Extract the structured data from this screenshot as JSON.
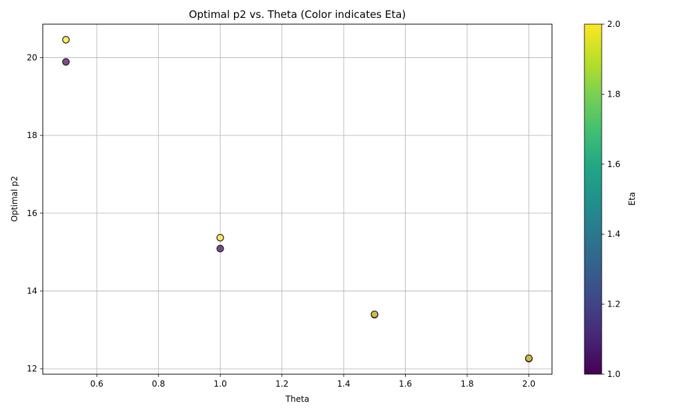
{
  "chart_data": {
    "type": "scatter",
    "title": "Optimal p2 vs. Theta (Color indicates Eta)",
    "xlabel": "Theta",
    "ylabel": "Optimal p2",
    "xlim": [
      0.425,
      2.075
    ],
    "ylim": [
      11.86,
      20.86
    ],
    "xticks": [
      0.6,
      0.8,
      1.0,
      1.2,
      1.4,
      1.6,
      1.8,
      2.0
    ],
    "xtick_labels": [
      "0.6",
      "0.8",
      "1.0",
      "1.2",
      "1.4",
      "1.6",
      "1.8",
      "2.0"
    ],
    "yticks": [
      12,
      14,
      16,
      18,
      20
    ],
    "ytick_labels": [
      "12",
      "14",
      "16",
      "18",
      "20"
    ],
    "grid": true,
    "colorbar": {
      "label": "Eta",
      "colormap": "viridis",
      "range": [
        1.0,
        2.0
      ],
      "ticks": [
        1.0,
        1.2,
        1.4,
        1.6,
        1.8,
        2.0
      ],
      "tick_labels": [
        "1.0",
        "1.2",
        "1.4",
        "1.6",
        "1.8",
        "2.0"
      ]
    },
    "points": [
      {
        "x": 0.5,
        "y": 19.89,
        "eta": 1.0
      },
      {
        "x": 0.5,
        "y": 20.46,
        "eta": 2.0
      },
      {
        "x": 1.0,
        "y": 15.09,
        "eta": 1.0
      },
      {
        "x": 1.0,
        "y": 15.37,
        "eta": 2.0
      },
      {
        "x": 1.5,
        "y": 13.39,
        "eta": 1.0
      },
      {
        "x": 1.5,
        "y": 13.4,
        "eta": 2.0
      },
      {
        "x": 2.0,
        "y": 12.26,
        "eta": 1.0
      },
      {
        "x": 2.0,
        "y": 12.27,
        "eta": 2.0
      }
    ],
    "marker_edge_color": "#222222",
    "marker_alpha": 0.7
  }
}
